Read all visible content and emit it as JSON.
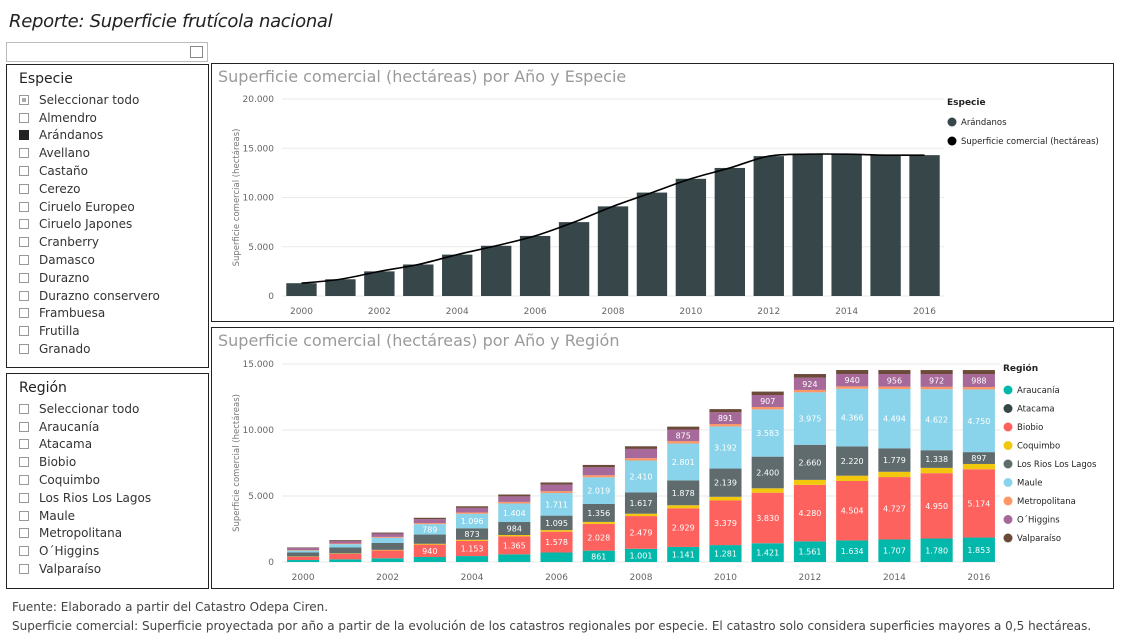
{
  "report_title": "Reporte: Superficie frutícola nacional",
  "slicer_especie": {
    "title": "Especie",
    "items": [
      {
        "label": "Seleccionar todo",
        "state": "partial"
      },
      {
        "label": "Almendro",
        "state": "off"
      },
      {
        "label": "Arándanos",
        "state": "on"
      },
      {
        "label": "Avellano",
        "state": "off"
      },
      {
        "label": "Castaño",
        "state": "off"
      },
      {
        "label": "Cerezo",
        "state": "off"
      },
      {
        "label": "Ciruelo Europeo",
        "state": "off"
      },
      {
        "label": "Ciruelo Japones",
        "state": "off"
      },
      {
        "label": "Cranberry",
        "state": "off"
      },
      {
        "label": "Damasco",
        "state": "off"
      },
      {
        "label": "Durazno",
        "state": "off"
      },
      {
        "label": "Durazno conservero",
        "state": "off"
      },
      {
        "label": "Frambuesa",
        "state": "off"
      },
      {
        "label": "Frutilla",
        "state": "off"
      },
      {
        "label": "Granado",
        "state": "off"
      }
    ]
  },
  "slicer_region": {
    "title": "Región",
    "items": [
      {
        "label": "Seleccionar todo",
        "state": "off"
      },
      {
        "label": "Araucanía",
        "state": "off"
      },
      {
        "label": "Atacama",
        "state": "off"
      },
      {
        "label": "Biobio",
        "state": "off"
      },
      {
        "label": "Coquimbo",
        "state": "off"
      },
      {
        "label": "Los Rios Los Lagos",
        "state": "off"
      },
      {
        "label": "Maule",
        "state": "off"
      },
      {
        "label": "Metropolitana",
        "state": "off"
      },
      {
        "label": "O´Higgins",
        "state": "off"
      },
      {
        "label": "Valparaíso",
        "state": "off"
      }
    ]
  },
  "footer": {
    "source": "Fuente: Elaborado a partir del Catastro Odepa Ciren.",
    "note": "Superficie comercial: Superficie proyectada por año a partir de la evolución de los catastros regionales por especie. El catastro solo considera superficies mayores a 0,5 hectáreas."
  },
  "chart_data": [
    {
      "type": "bar",
      "title": "Superficie comercial (hectáreas) por Año y Especie",
      "ylabel": "Superficie comercial (hectáreas)",
      "ylim": [
        0,
        20000
      ],
      "yticks": [
        "0",
        "5.000",
        "10.000",
        "15.000",
        "20.000"
      ],
      "xticks": [
        "2000",
        "2002",
        "2004",
        "2006",
        "2008",
        "2010",
        "2012",
        "2014",
        "2016"
      ],
      "x": [
        2000,
        2001,
        2002,
        2003,
        2004,
        2005,
        2006,
        2007,
        2008,
        2009,
        2010,
        2011,
        2012,
        2013,
        2014,
        2015,
        2016
      ],
      "legend_title": "Especie",
      "legend": "right",
      "series": [
        {
          "name": "Arándanos",
          "kind": "bar",
          "color": "#374649",
          "values": [
            1300,
            1700,
            2500,
            3200,
            4200,
            5100,
            6100,
            7500,
            9100,
            10500,
            11900,
            13000,
            14200,
            14400,
            14400,
            14300,
            14300
          ]
        },
        {
          "name": "Superficie comercial (hectáreas)",
          "kind": "line",
          "color": "#000000",
          "values": [
            1300,
            1700,
            2500,
            3200,
            4200,
            5100,
            6100,
            7500,
            9100,
            10500,
            11900,
            13000,
            14200,
            14400,
            14400,
            14300,
            14300
          ]
        }
      ]
    },
    {
      "type": "bar",
      "stacked": true,
      "title": "Superficie comercial (hectáreas) por Año y Región",
      "ylabel": "Superficie comercial (hectáreas)",
      "ylim": [
        0,
        15000
      ],
      "yticks": [
        "0",
        "5.000",
        "10.000",
        "15.000"
      ],
      "xticks": [
        "2000",
        "2002",
        "2004",
        "2006",
        "2008",
        "2010",
        "2012",
        "2014",
        "2016"
      ],
      "x": [
        2000,
        2001,
        2002,
        2003,
        2004,
        2005,
        2006,
        2007,
        2008,
        2009,
        2010,
        2011,
        2012,
        2013,
        2014,
        2015,
        2016
      ],
      "legend_title": "Región",
      "legend": "right",
      "series": [
        {
          "name": "Araucanía",
          "color": "#01B8AA",
          "values": [
            150,
            200,
            280,
            380,
            450,
            580,
            720,
            861,
            1001,
            1141,
            1281,
            1421,
            1561,
            1634,
            1707,
            1780,
            1853
          ],
          "labels": [
            "",
            "",
            "",
            "",
            "",
            "",
            "",
            "861",
            "1.001",
            "1.141",
            "1.281",
            "1.421",
            "1.561",
            "1.634",
            "1.707",
            "1.780",
            "1.853"
          ]
        },
        {
          "name": "Atacama",
          "color": "#374649",
          "values": [
            0,
            0,
            0,
            0,
            0,
            0,
            0,
            0,
            0,
            0,
            0,
            0,
            0,
            0,
            0,
            0,
            0
          ],
          "labels": [
            "",
            "",
            "",
            "",
            "",
            "",
            "",
            "",
            "",
            "",
            "",
            "",
            "",
            "",
            "",
            "",
            ""
          ]
        },
        {
          "name": "Biobio",
          "color": "#FD625E",
          "values": [
            250,
            420,
            600,
            940,
            1153,
            1365,
            1578,
            2028,
            2479,
            2929,
            3379,
            3830,
            4280,
            4504,
            4727,
            4950,
            5174
          ],
          "labels": [
            "",
            "",
            "",
            "940",
            "1.153",
            "1.365",
            "1.578",
            "2.028",
            "2.479",
            "2.929",
            "3.379",
            "3.830",
            "4.280",
            "4.504",
            "4.727",
            "4.950",
            "5.174"
          ]
        },
        {
          "name": "Coquimbo",
          "color": "#F2C80F",
          "values": [
            20,
            30,
            40,
            60,
            80,
            100,
            120,
            150,
            180,
            230,
            280,
            330,
            380,
            400,
            400,
            400,
            400
          ],
          "labels": [
            "",
            "",
            "",
            "",
            "",
            "",
            "",
            "",
            "",
            "",
            "",
            "",
            "",
            "",
            "",
            "",
            ""
          ]
        },
        {
          "name": "Los Rios Los Lagos",
          "color": "#5F6B6D",
          "values": [
            300,
            450,
            520,
            700,
            873,
            984,
            1095,
            1356,
            1617,
            1878,
            2139,
            2400,
            2660,
            2220,
            1779,
            1338,
            897
          ],
          "labels": [
            "",
            "",
            "",
            "",
            "873",
            "984",
            "1.095",
            "1.356",
            "1.617",
            "1.878",
            "2.139",
            "2.400",
            "2.660",
            "2.220",
            "1.779",
            "1.338",
            "897"
          ]
        },
        {
          "name": "Maule",
          "color": "#8AD4EB",
          "values": [
            150,
            250,
            400,
            789,
            1096,
            1404,
            1711,
            2019,
            2410,
            2801,
            3192,
            3583,
            3975,
            4366,
            4494,
            4622,
            4750
          ],
          "labels": [
            "",
            "",
            "",
            "789",
            "1.096",
            "1.404",
            "1.711",
            "2.019",
            "2.410",
            "2.801",
            "3.192",
            "3.583",
            "3.975",
            "4.366",
            "4.494",
            "4.622",
            "4.750"
          ]
        },
        {
          "name": "Metropolitana",
          "color": "#FE9666",
          "values": [
            40,
            50,
            60,
            80,
            100,
            120,
            140,
            160,
            180,
            180,
            180,
            180,
            180,
            180,
            180,
            180,
            180
          ],
          "labels": [
            "",
            "",
            "",
            "",
            "",
            "",
            "",
            "",
            "",
            "",
            "",
            "",
            "",
            "",
            "",
            "",
            ""
          ]
        },
        {
          "name": "O´Higgins",
          "color": "#A66999",
          "values": [
            150,
            200,
            250,
            300,
            350,
            420,
            500,
            600,
            700,
            875,
            891,
            907,
            924,
            940,
            956,
            972,
            988
          ],
          "labels": [
            "",
            "",
            "",
            "",
            "",
            "",
            "",
            "",
            "",
            "875",
            "891",
            "907",
            "924",
            "940",
            "956",
            "972",
            "988"
          ]
        },
        {
          "name": "Valparaíso",
          "color": "#6B4A3A",
          "values": [
            40,
            60,
            80,
            100,
            120,
            140,
            160,
            180,
            200,
            220,
            240,
            260,
            280,
            300,
            300,
            300,
            300
          ],
          "labels": [
            "",
            "",
            "",
            "",
            "",
            "",
            "",
            "",
            "",
            "",
            "",
            "",
            "",
            "",
            "",
            "",
            ""
          ]
        }
      ]
    }
  ]
}
